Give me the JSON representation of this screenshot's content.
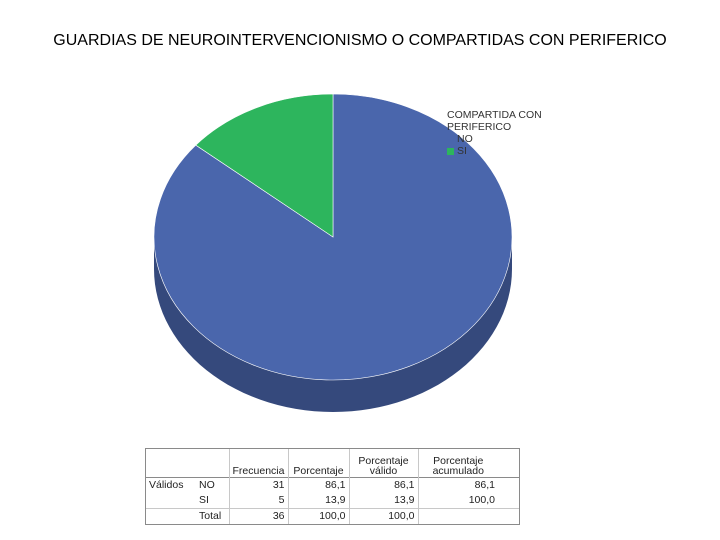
{
  "title": "GUARDIAS DE NEUROINTERVENCIONISMO O COMPARTIDAS CON PERIFERICO",
  "chart_data": {
    "type": "pie",
    "legend_title": "COMPARTIDA CON PERIFERICO",
    "legend_position": "top-right",
    "categories": [
      "NO",
      "SI"
    ],
    "values": [
      86.1,
      13.9
    ],
    "colors": [
      "#4a66ac",
      "#2db55d"
    ]
  },
  "table": {
    "headers": [
      "Frecuencia",
      "Porcentaje",
      "Porcentaje válido",
      "Porcentaje acumulado"
    ],
    "row_group_label": "Válidos",
    "rows": [
      {
        "label": "NO",
        "frecuencia": "31",
        "porcentaje": "86,1",
        "valido": "86,1",
        "acumulado": "86,1"
      },
      {
        "label": "SI",
        "frecuencia": "5",
        "porcentaje": "13,9",
        "valido": "13,9",
        "acumulado": "100,0"
      },
      {
        "label": "Total",
        "frecuencia": "36",
        "porcentaje": "100,0",
        "valido": "100,0",
        "acumulado": ""
      }
    ]
  }
}
